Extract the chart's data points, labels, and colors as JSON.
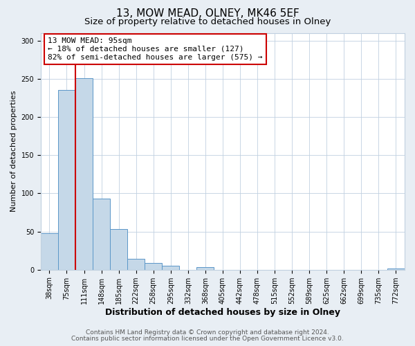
{
  "title": "13, MOW MEAD, OLNEY, MK46 5EF",
  "subtitle": "Size of property relative to detached houses in Olney",
  "xlabel": "Distribution of detached houses by size in Olney",
  "ylabel": "Number of detached properties",
  "bin_labels": [
    "38sqm",
    "75sqm",
    "111sqm",
    "148sqm",
    "185sqm",
    "222sqm",
    "258sqm",
    "295sqm",
    "332sqm",
    "368sqm",
    "405sqm",
    "442sqm",
    "478sqm",
    "515sqm",
    "552sqm",
    "589sqm",
    "625sqm",
    "662sqm",
    "699sqm",
    "735sqm",
    "772sqm"
  ],
  "bar_heights": [
    48,
    235,
    251,
    93,
    53,
    14,
    9,
    5,
    0,
    3,
    0,
    0,
    0,
    0,
    0,
    0,
    0,
    0,
    0,
    0,
    2
  ],
  "bar_color": "#c5d8e8",
  "bar_edge_color": "#5a96c8",
  "vline_color": "#cc0000",
  "annotation_text": "13 MOW MEAD: 95sqm\n← 18% of detached houses are smaller (127)\n82% of semi-detached houses are larger (575) →",
  "annotation_box_color": "#ffffff",
  "annotation_box_edge": "#cc0000",
  "ylim": [
    0,
    310
  ],
  "yticks": [
    0,
    50,
    100,
    150,
    200,
    250,
    300
  ],
  "footer_line1": "Contains HM Land Registry data © Crown copyright and database right 2024.",
  "footer_line2": "Contains public sector information licensed under the Open Government Licence v3.0.",
  "background_color": "#e8eef4",
  "plot_bg_color": "#ffffff",
  "grid_color": "#c0d0e0",
  "title_fontsize": 11,
  "subtitle_fontsize": 9.5,
  "xlabel_fontsize": 9,
  "ylabel_fontsize": 8,
  "tick_fontsize": 7,
  "footer_fontsize": 6.5,
  "annotation_fontsize": 8,
  "vline_bin_index": 2
}
